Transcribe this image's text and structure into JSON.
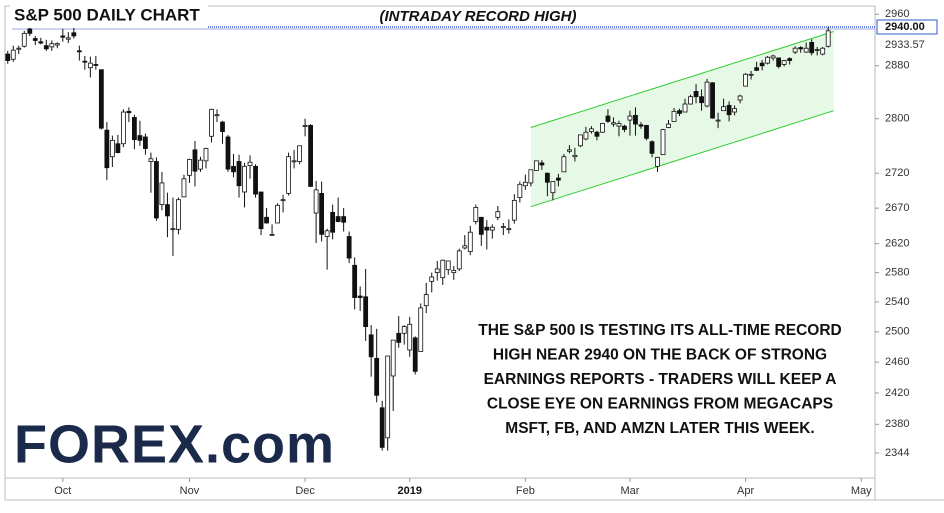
{
  "chart_data": {
    "type": "candlestick",
    "title": "S&P 500 DAILY CHART",
    "annotation_top": "(INTRADAY RECORD HIGH)",
    "annotation_lines": [
      "THE S&P 500 IS TESTING ITS ALL-TIME RECORD",
      "HIGH NEAR 2940 ON THE BACK OF STRONG",
      "EARNINGS REPORTS - TRADERS WILL KEEP A",
      "CLOSE EYE ON EARNINGS FROM MEGACAPS",
      "MSFT, FB, AND AMZN LATER THIS WEEK."
    ],
    "logo": "FOREX.com",
    "log_scale": true,
    "up_color": "#ffffff",
    "down_color": "#111111",
    "open": [
      2898,
      2890,
      2906,
      2910,
      2937,
      2922,
      2917,
      2911,
      2909,
      2912,
      2926,
      2921,
      2931,
      2903,
      2887,
      2877,
      2882,
      2874,
      2783,
      2744,
      2763,
      2763,
      2811,
      2802,
      2775,
      2773,
      2737,
      2737,
      2675,
      2675,
      2640,
      2640,
      2686,
      2717,
      2754,
      2726,
      2738,
      2774,
      2806,
      2795,
      2773,
      2730,
      2737,
      2693,
      2731,
      2730,
      2693,
      2657,
      2633,
      2649,
      2682,
      2691,
      2737,
      2737,
      2790,
      2790,
      2663,
      2691,
      2630,
      2664,
      2658,
      2658,
      2630,
      2590,
      2548,
      2547,
      2496,
      2465,
      2401,
      2363,
      2442,
      2498,
      2498,
      2476,
      2492,
      2474,
      2535,
      2568,
      2580,
      2573,
      2584,
      2580,
      2585,
      2614,
      2609,
      2651,
      2657,
      2643,
      2639,
      2657,
      2644,
      2640,
      2653,
      2685,
      2702,
      2706,
      2724,
      2735,
      2720,
      2692,
      2713,
      2722,
      2752,
      2744,
      2760,
      2770,
      2781,
      2780,
      2780,
      2804,
      2792,
      2789,
      2789,
      2798,
      2805,
      2791,
      2790,
      2766,
      2730,
      2747,
      2787,
      2796,
      2812,
      2810,
      2822,
      2841,
      2833,
      2819,
      2854,
      2797,
      2812,
      2820,
      2810,
      2828,
      2849,
      2867,
      2877,
      2884,
      2884,
      2892,
      2892,
      2882,
      2891,
      2901,
      2908,
      2901,
      2916,
      2904,
      2898,
      2910
    ],
    "high": [
      2903,
      2911,
      2911,
      2934,
      2941,
      2926,
      2923,
      2920,
      2919,
      2916,
      2937,
      2932,
      2939,
      2911,
      2895,
      2894,
      2895,
      2874,
      2795,
      2775,
      2776,
      2814,
      2817,
      2806,
      2797,
      2778,
      2750,
      2743,
      2722,
      2692,
      2685,
      2685,
      2718,
      2741,
      2767,
      2744,
      2757,
      2815,
      2814,
      2797,
      2776,
      2748,
      2747,
      2735,
      2746,
      2733,
      2693,
      2670,
      2647,
      2677,
      2689,
      2750,
      2754,
      2760,
      2800,
      2792,
      2709,
      2708,
      2641,
      2675,
      2685,
      2670,
      2637,
      2601,
      2561,
      2585,
      2509,
      2504,
      2410,
      2468,
      2489,
      2521,
      2509,
      2520,
      2494,
      2538,
      2566,
      2580,
      2596,
      2598,
      2596,
      2589,
      2613,
      2632,
      2645,
      2675,
      2657,
      2653,
      2647,
      2673,
      2649,
      2654,
      2690,
      2708,
      2718,
      2725,
      2738,
      2739,
      2721,
      2708,
      2719,
      2748,
      2761,
      2757,
      2776,
      2788,
      2789,
      2782,
      2794,
      2814,
      2802,
      2797,
      2791,
      2812,
      2817,
      2795,
      2791,
      2768,
      2744,
      2785,
      2798,
      2816,
      2815,
      2830,
      2836,
      2852,
      2844,
      2860,
      2855,
      2809,
      2830,
      2826,
      2820,
      2836,
      2869,
      2872,
      2886,
      2889,
      2895,
      2897,
      2892,
      2889,
      2893,
      2910,
      2910,
      2916,
      2921,
      2909,
      2909,
      2940
    ],
    "low": [
      2883,
      2886,
      2898,
      2908,
      2926,
      2912,
      2913,
      2903,
      2903,
      2907,
      2917,
      2915,
      2922,
      2888,
      2874,
      2862,
      2874,
      2784,
      2710,
      2729,
      2749,
      2758,
      2795,
      2755,
      2760,
      2747,
      2692,
      2652,
      2667,
      2629,
      2603,
      2633,
      2686,
      2706,
      2701,
      2722,
      2727,
      2765,
      2795,
      2763,
      2722,
      2714,
      2685,
      2671,
      2712,
      2685,
      2632,
      2648,
      2631,
      2649,
      2664,
      2688,
      2727,
      2733,
      2774,
      2700,
      2621,
      2623,
      2584,
      2626,
      2650,
      2637,
      2593,
      2530,
      2528,
      2488,
      2441,
      2408,
      2347,
      2347,
      2397,
      2479,
      2483,
      2467,
      2444,
      2474,
      2525,
      2553,
      2569,
      2563,
      2577,
      2570,
      2582,
      2612,
      2604,
      2647,
      2617,
      2612,
      2627,
      2653,
      2632,
      2634,
      2648,
      2678,
      2696,
      2701,
      2724,
      2725,
      2687,
      2681,
      2701,
      2722,
      2749,
      2737,
      2758,
      2768,
      2778,
      2768,
      2779,
      2794,
      2788,
      2774,
      2780,
      2775,
      2775,
      2785,
      2768,
      2743,
      2722,
      2747,
      2786,
      2796,
      2804,
      2810,
      2821,
      2823,
      2812,
      2817,
      2800,
      2786,
      2812,
      2796,
      2805,
      2823,
      2849,
      2859,
      2872,
      2873,
      2882,
      2888,
      2876,
      2879,
      2882,
      2898,
      2900,
      2900,
      2896,
      2896,
      2896,
      2908
    ],
    "close": [
      2888,
      2904,
      2907,
      2930,
      2930,
      2919,
      2915,
      2906,
      2914,
      2914,
      2924,
      2923,
      2926,
      2902,
      2886,
      2884,
      2881,
      2786,
      2728,
      2768,
      2750,
      2810,
      2809,
      2769,
      2768,
      2756,
      2741,
      2656,
      2706,
      2659,
      2641,
      2682,
      2712,
      2740,
      2723,
      2739,
      2756,
      2814,
      2806,
      2781,
      2726,
      2722,
      2702,
      2730,
      2736,
      2690,
      2641,
      2649,
      2633,
      2674,
      2682,
      2744,
      2738,
      2760,
      2790,
      2701,
      2696,
      2633,
      2638,
      2636,
      2651,
      2650,
      2600,
      2546,
      2546,
      2507,
      2467,
      2417,
      2351,
      2468,
      2489,
      2486,
      2507,
      2510,
      2448,
      2532,
      2550,
      2574,
      2585,
      2597,
      2596,
      2583,
      2610,
      2617,
      2636,
      2671,
      2633,
      2639,
      2643,
      2665,
      2644,
      2641,
      2681,
      2704,
      2707,
      2725,
      2738,
      2732,
      2707,
      2708,
      2710,
      2744,
      2754,
      2746,
      2776,
      2780,
      2785,
      2774,
      2793,
      2796,
      2794,
      2793,
      2784,
      2804,
      2792,
      2789,
      2771,
      2749,
      2743,
      2784,
      2792,
      2811,
      2808,
      2822,
      2833,
      2833,
      2824,
      2855,
      2801,
      2798,
      2818,
      2806,
      2815,
      2834,
      2867,
      2867,
      2873,
      2880,
      2893,
      2895,
      2879,
      2888,
      2888,
      2907,
      2906,
      2907,
      2900,
      2905,
      2907,
      2934
    ],
    "xlim": [
      0,
      158
    ],
    "xticks": [
      {
        "value": 10,
        "label": "Oct"
      },
      {
        "value": 33,
        "label": "Nov"
      },
      {
        "value": 54,
        "label": "Dec"
      },
      {
        "value": 73,
        "label": "2019"
      },
      {
        "value": 94,
        "label": "Feb"
      },
      {
        "value": 113,
        "label": "Mar"
      },
      {
        "value": 134,
        "label": "Apr"
      },
      {
        "value": 155,
        "label": "May"
      }
    ],
    "ylim": [
      2313,
      2973
    ],
    "yticks": [
      2960,
      2880,
      2800,
      2720,
      2670,
      2620,
      2580,
      2540,
      2500,
      2460,
      2420,
      2380,
      2344
    ],
    "record_line": {
      "value": 2940,
      "label": "2940.00",
      "color": "#3355cc"
    },
    "last_price": {
      "value": 2933.57,
      "label": "2933.57"
    },
    "channel": {
      "x": [
        95,
        150
      ],
      "upper": [
        2787,
        2933
      ],
      "lower": [
        2672,
        2812
      ],
      "color": "#33cc33"
    }
  }
}
